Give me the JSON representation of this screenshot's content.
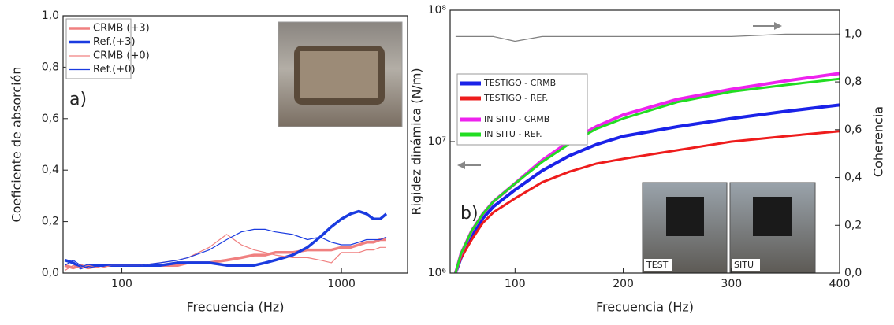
{
  "chart_data": [
    {
      "type": "line",
      "xlabel": "Frecuencia (Hz)",
      "ylabel": "Coeficiente de absorción",
      "xlog": true,
      "xlim": [
        54,
        2000
      ],
      "xticks": [
        100,
        1000
      ],
      "ylim": [
        0,
        1.0
      ],
      "yticks": [
        {
          "value": 0,
          "label": "0,0"
        },
        {
          "value": 0.2,
          "label": "0,2"
        },
        {
          "value": 0.4,
          "label": "0,4"
        },
        {
          "value": 0.6,
          "label": "0,6"
        },
        {
          "value": 0.8,
          "label": "0,8"
        },
        {
          "value": 1.0,
          "label": "1,0"
        }
      ],
      "legend": "upper left",
      "annotations": [
        "a)"
      ],
      "x": [
        55,
        60,
        65,
        70,
        80,
        90,
        100,
        120,
        150,
        180,
        200,
        250,
        300,
        350,
        400,
        450,
        500,
        600,
        700,
        800,
        900,
        1000,
        1100,
        1200,
        1300,
        1400,
        1500,
        1600
      ],
      "series": [
        {
          "name": "CRMB (+3)",
          "color": "#f08080",
          "width": 3.5,
          "values": [
            0.03,
            0.02,
            0.03,
            0.02,
            0.03,
            0.03,
            0.03,
            0.03,
            0.03,
            0.03,
            0.04,
            0.04,
            0.05,
            0.06,
            0.07,
            0.07,
            0.08,
            0.08,
            0.09,
            0.09,
            0.09,
            0.1,
            0.1,
            0.11,
            0.12,
            0.12,
            0.13,
            0.13
          ]
        },
        {
          "name": "Ref.(+3)",
          "color": "#1a3be0",
          "width": 3.5,
          "values": [
            0.05,
            0.04,
            0.02,
            0.03,
            0.03,
            0.03,
            0.03,
            0.03,
            0.03,
            0.04,
            0.04,
            0.04,
            0.03,
            0.03,
            0.03,
            0.04,
            0.05,
            0.07,
            0.1,
            0.14,
            0.18,
            0.21,
            0.23,
            0.24,
            0.23,
            0.21,
            0.21,
            0.23
          ]
        },
        {
          "name": "CRMB (+0)",
          "color": "#f08080",
          "width": 1.2,
          "values": [
            0.01,
            0.03,
            0.02,
            0.03,
            0.02,
            0.03,
            0.03,
            0.03,
            0.04,
            0.05,
            0.06,
            0.1,
            0.15,
            0.11,
            0.09,
            0.08,
            0.07,
            0.06,
            0.06,
            0.05,
            0.04,
            0.08,
            0.08,
            0.08,
            0.09,
            0.09,
            0.1,
            0.1
          ]
        },
        {
          "name": "Ref.(+0)",
          "color": "#1a3be0",
          "width": 1.2,
          "values": [
            0.03,
            0.05,
            0.03,
            0.02,
            0.03,
            0.03,
            0.03,
            0.03,
            0.04,
            0.05,
            0.06,
            0.09,
            0.13,
            0.16,
            0.17,
            0.17,
            0.16,
            0.15,
            0.13,
            0.14,
            0.12,
            0.11,
            0.11,
            0.12,
            0.13,
            0.13,
            0.13,
            0.14
          ]
        }
      ]
    },
    {
      "type": "line",
      "xlabel": "Frecuencia (Hz)",
      "ylabel": "Rigidez dinámica (N/m)",
      "y2label": "Coherencia",
      "xlim": [
        40,
        400
      ],
      "xticks": [
        100,
        200,
        300,
        400
      ],
      "ylog": true,
      "ylim": [
        1000000,
        100000000
      ],
      "yticks": [
        {
          "value": 1000000,
          "label": "10⁶"
        },
        {
          "value": 10000000,
          "label": "10⁷"
        },
        {
          "value": 100000000,
          "label": "10⁸"
        }
      ],
      "y2lim": [
        0,
        1.1
      ],
      "y2ticks": [
        {
          "value": 0,
          "label": "0,0"
        },
        {
          "value": 0.2,
          "label": "0,2"
        },
        {
          "value": 0.4,
          "label": "0,4"
        },
        {
          "value": 0.6,
          "label": "0,6"
        },
        {
          "value": 0.8,
          "label": "0,8"
        },
        {
          "value": 1.0,
          "label": "1,0"
        }
      ],
      "legend": "center left",
      "annotations": [
        "b)",
        "TEST",
        "SITU"
      ],
      "x": [
        45,
        50,
        60,
        70,
        80,
        100,
        125,
        150,
        175,
        200,
        250,
        300,
        350,
        400
      ],
      "series": [
        {
          "name": "TESTIGO - CRMB",
          "color": "#1a22e8",
          "width": 4,
          "values": [
            1000000,
            1300000,
            1900000,
            2600000,
            3200000,
            4300000,
            6000000,
            7800000,
            9500000,
            11000000,
            13000000,
            15000000,
            17000000,
            19000000
          ]
        },
        {
          "name": "TESTIGO - REF.",
          "color": "#ee1c1c",
          "width": 3,
          "values": [
            1000000,
            1300000,
            1800000,
            2400000,
            2900000,
            3700000,
            4900000,
            5900000,
            6800000,
            7400000,
            8600000,
            10000000,
            11000000,
            12000000
          ]
        },
        {
          "name": "IN SITU - CRMB",
          "color": "#ee22ee",
          "width": 4,
          "values": [
            1000000,
            1400000,
            2100000,
            2800000,
            3500000,
            4800000,
            7200000,
            10000000,
            13000000,
            16000000,
            21000000,
            25000000,
            29000000,
            33000000
          ]
        },
        {
          "name": "IN SITU - REF.",
          "color": "#22dd22",
          "width": 3,
          "values": [
            1000000,
            1400000,
            2100000,
            2800000,
            3500000,
            4800000,
            7000000,
            9600000,
            12500000,
            15000000,
            20000000,
            24000000,
            27000000,
            30000000
          ]
        },
        {
          "color": "#808080",
          "width": 1.2,
          "axis": "y2",
          "values": [
            0.99,
            0.99,
            0.99,
            0.99,
            0.99,
            0.97,
            0.99,
            0.99,
            0.99,
            0.99,
            0.99,
            0.99,
            1.0,
            1.0
          ]
        }
      ]
    }
  ]
}
